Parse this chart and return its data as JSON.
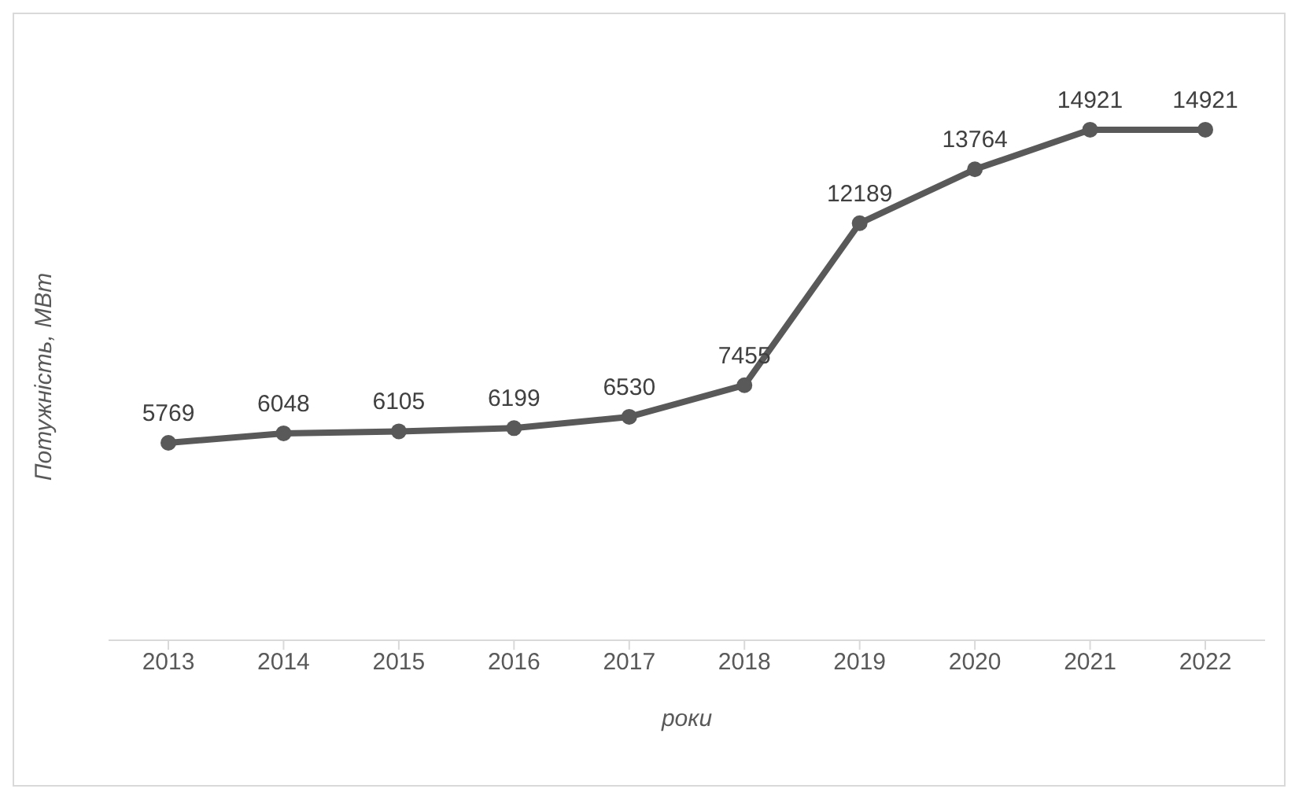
{
  "chart_data": {
    "type": "line",
    "xlabel": "роки",
    "ylabel": "Потужність, МВт",
    "categories": [
      "2013",
      "2014",
      "2015",
      "2016",
      "2017",
      "2018",
      "2019",
      "2020",
      "2021",
      "2022"
    ],
    "values": [
      5769,
      6048,
      6105,
      6199,
      6530,
      7455,
      12189,
      13764,
      14921,
      14921
    ],
    "color": "#595959",
    "data_labels": true,
    "marker": "circle",
    "line_style": "solid",
    "tick_labels": "x"
  }
}
